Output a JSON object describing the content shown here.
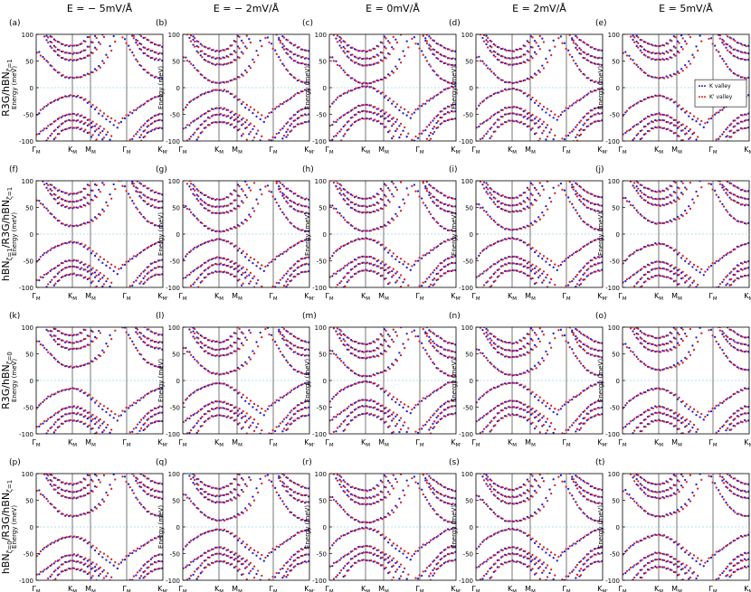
{
  "figure": {
    "column_titles": [
      "E = − 5mV/Å",
      "E = − 2mV/Å",
      "E = 0mV/Å",
      "E = 2mV/Å",
      "E = 5mV/Å"
    ],
    "row_labels": [
      {
        "base": "R3G/hBN",
        "sub": "ζ=1"
      },
      {
        "base": "hBN",
        "sub": "ζ=1",
        "mid": "/R3G/hBN",
        "sub2": "ζ=1"
      },
      {
        "base": "R3G/hBN",
        "sub": "ζ=0"
      },
      {
        "base": "hBN",
        "sub": "ζ=0",
        "mid": "/R3G/hBN",
        "sub2": "ζ=1"
      }
    ],
    "panel_letters": [
      "(a)",
      "(b)",
      "(c)",
      "(d)",
      "(e)",
      "(f)",
      "(g)",
      "(h)",
      "(i)",
      "(j)",
      "(k)",
      "(l)",
      "(m)",
      "(n)",
      "(o)",
      "(p)",
      "(q)",
      "(r)",
      "(s)",
      "(t)"
    ],
    "colors": {
      "k_valley": "#1f1fd6",
      "kprime_valley": "#e01e1e",
      "zero_line": "#9fd8e8",
      "frame": "#000000",
      "divider": "#555555"
    }
  },
  "chart_data": {
    "type": "scatter",
    "ylabel": "Energy (meV)",
    "ylim": [
      -100,
      100
    ],
    "yticks": [
      -100,
      -50,
      0,
      50,
      100
    ],
    "x_ticks": [
      {
        "main": "Γ",
        "sub": "M"
      },
      {
        "main": "K",
        "sub": "M"
      },
      {
        "main": "M",
        "sub": "M"
      },
      {
        "main": "Γ",
        "sub": "M"
      },
      {
        "main": "K",
        "sub": "M'"
      }
    ],
    "x_tick_positions": [
      0,
      1,
      1.5,
      2.5,
      3.5
    ],
    "legend": {
      "placement": "right",
      "panel": "e",
      "entries": [
        "K valley",
        "K' valley"
      ]
    },
    "series": [
      {
        "name": "K valley",
        "color": "#1f1fd6"
      },
      {
        "name": "K' valley",
        "color": "#e01e1e"
      }
    ],
    "panels": [
      {
        "id": "a",
        "field": -5,
        "gap": [
          -15,
          18
        ]
      },
      {
        "id": "b",
        "field": -2,
        "gap": [
          -4,
          9
        ]
      },
      {
        "id": "c",
        "field": 0,
        "gap": [
          2,
          8
        ]
      },
      {
        "id": "d",
        "field": 2,
        "gap": [
          -2,
          9
        ]
      },
      {
        "id": "e",
        "field": 5,
        "gap": [
          -15,
          18
        ]
      },
      {
        "id": "f",
        "field": -5,
        "gap": [
          -15,
          15
        ]
      },
      {
        "id": "g",
        "field": -2,
        "gap": [
          -10,
          5
        ]
      },
      {
        "id": "h",
        "field": 0,
        "gap": [
          -8,
          6
        ]
      },
      {
        "id": "i",
        "field": 2,
        "gap": [
          -8,
          8
        ]
      },
      {
        "id": "j",
        "field": 5,
        "gap": [
          -18,
          20
        ]
      },
      {
        "id": "k",
        "field": -5,
        "gap": [
          -15,
          25
        ]
      },
      {
        "id": "l",
        "field": -2,
        "gap": [
          -5,
          12
        ]
      },
      {
        "id": "m",
        "field": 0,
        "gap": [
          -2,
          8
        ]
      },
      {
        "id": "n",
        "field": 2,
        "gap": [
          -4,
          10
        ]
      },
      {
        "id": "o",
        "field": 5,
        "gap": [
          -15,
          20
        ]
      },
      {
        "id": "p",
        "field": -5,
        "gap": [
          -18,
          20
        ]
      },
      {
        "id": "q",
        "field": -2,
        "gap": [
          -5,
          12
        ]
      },
      {
        "id": "r",
        "field": 0,
        "gap": [
          -2,
          8
        ]
      },
      {
        "id": "s",
        "field": 2,
        "gap": [
          -4,
          10
        ]
      },
      {
        "id": "t",
        "field": 5,
        "gap": [
          -15,
          20
        ]
      }
    ]
  }
}
